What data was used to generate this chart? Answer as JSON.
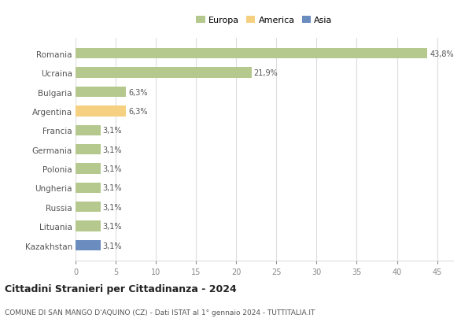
{
  "categories": [
    "Romania",
    "Ucraina",
    "Bulgaria",
    "Argentina",
    "Francia",
    "Germania",
    "Polonia",
    "Ungheria",
    "Russia",
    "Lituania",
    "Kazakhstan"
  ],
  "values": [
    43.8,
    21.9,
    6.3,
    6.3,
    3.1,
    3.1,
    3.1,
    3.1,
    3.1,
    3.1,
    3.1
  ],
  "bar_colors": [
    "#b5c98e",
    "#b5c98e",
    "#b5c98e",
    "#f5d080",
    "#b5c98e",
    "#b5c98e",
    "#b5c98e",
    "#b5c98e",
    "#b5c98e",
    "#b5c98e",
    "#6b8cbf"
  ],
  "labels": [
    "43,8%",
    "21,9%",
    "6,3%",
    "6,3%",
    "3,1%",
    "3,1%",
    "3,1%",
    "3,1%",
    "3,1%",
    "3,1%",
    "3,1%"
  ],
  "legend_labels": [
    "Europa",
    "America",
    "Asia"
  ],
  "legend_colors": [
    "#b5c98e",
    "#f5d080",
    "#6b8cbf"
  ],
  "title": "Cittadini Stranieri per Cittadinanza - 2024",
  "subtitle": "COMUNE DI SAN MANGO D'AQUINO (CZ) - Dati ISTAT al 1° gennaio 2024 - TUTTITALIA.IT",
  "xlim": [
    0,
    47
  ],
  "xticks": [
    0,
    5,
    10,
    15,
    20,
    25,
    30,
    35,
    40,
    45
  ],
  "background_color": "#ffffff",
  "grid_color": "#dddddd",
  "bar_height": 0.55
}
